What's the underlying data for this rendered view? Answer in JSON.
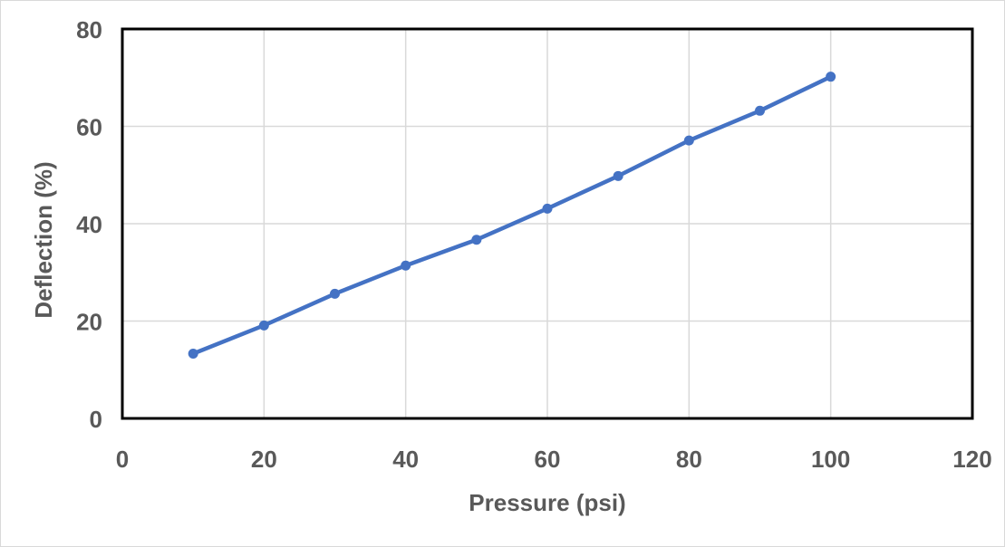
{
  "chart_data": {
    "type": "scatter",
    "title": "",
    "xlabel": "Pressure (psi)",
    "ylabel": "Deflection (%)",
    "xlim": [
      0,
      120
    ],
    "ylim": [
      0,
      80
    ],
    "x_ticks": [
      0,
      20,
      40,
      60,
      80,
      100,
      120
    ],
    "y_ticks": [
      0,
      20,
      40,
      60,
      80
    ],
    "grid": true,
    "legend": "none",
    "series": [
      {
        "name": "Deflection",
        "color": "#4472c4",
        "x": [
          10,
          20,
          30,
          40,
          50,
          60,
          70,
          80,
          90,
          100
        ],
        "y": [
          13.3,
          19.1,
          25.6,
          31.4,
          36.7,
          43.1,
          49.8,
          57.1,
          63.2,
          70.2
        ]
      }
    ]
  }
}
